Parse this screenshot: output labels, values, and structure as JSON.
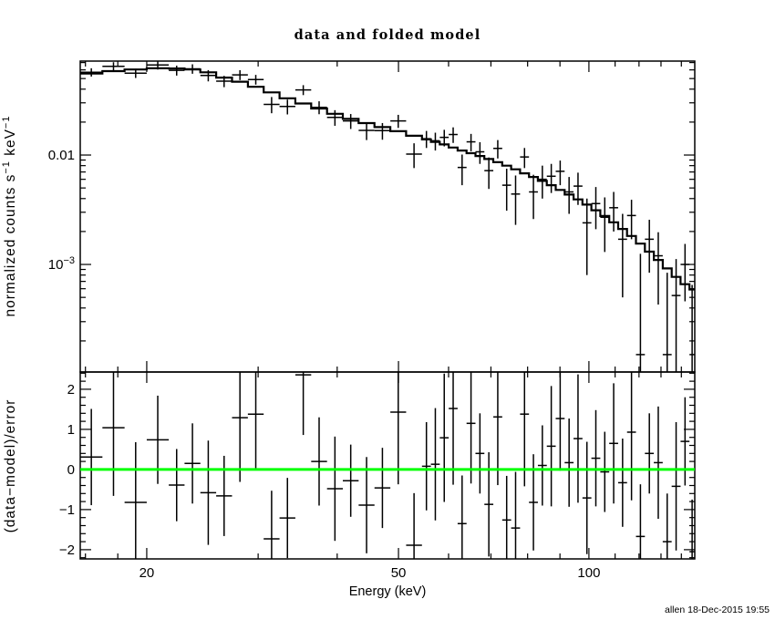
{
  "window": {
    "timestamp": "allen 18-Dec-2015 19:55"
  },
  "colors": {
    "foreground": "#000000",
    "background": "#ffffff",
    "zero_line_green": "#00ff00"
  },
  "chart_data": {
    "type": "line",
    "title": "data and folded model",
    "xlabel": "Energy (keV)",
    "x_scale": "log",
    "xlim": [
      15.7,
      147
    ],
    "x_major_ticks": [
      {
        "value": 20,
        "label": "20"
      },
      {
        "value": 50,
        "label": "50"
      },
      {
        "value": 100,
        "label": "100"
      }
    ],
    "x_minor_ticks": [
      16,
      18,
      30,
      40,
      60,
      70,
      80,
      90,
      110,
      120,
      130,
      140
    ],
    "bin_edges_keV": [
      15.7,
      17.02,
      18.45,
      20.0,
      21.67,
      22.95,
      24.31,
      25.75,
      27.28,
      28.9,
      30.61,
      32.43,
      34.35,
      36.39,
      38.55,
      40.83,
      43.25,
      45.82,
      48.54,
      51.41,
      54.46,
      56.26,
      58.11,
      60.03,
      62.01,
      64.06,
      66.17,
      68.35,
      70.61,
      72.94,
      75.34,
      77.83,
      80.4,
      83.05,
      85.79,
      88.62,
      91.54,
      94.56,
      97.68,
      100.9,
      104.23,
      107.67,
      111.22,
      114.89,
      118.68,
      122.6,
      126.64,
      130.82,
      135.14,
      139.6,
      144.2,
      147.0
    ],
    "spectrum_panel": {
      "ylabel_parts": [
        {
          "text": "normalized counts s"
        },
        {
          "text": "−1",
          "superscript": true
        },
        {
          "text": " keV"
        },
        {
          "text": "−1",
          "superscript": true
        }
      ],
      "y_scale": "log",
      "ylim": [
        0.000104,
        0.0722
      ],
      "y_major_ticks": [
        {
          "value": 0.01,
          "label": "0.01"
        },
        {
          "value": 0.001,
          "label_base": "10",
          "label_sup": "−3"
        }
      ],
      "model_counts": [
        0.0555,
        0.0585,
        0.0605,
        0.062,
        0.0618,
        0.0605,
        0.057,
        0.051,
        0.0468,
        0.042,
        0.0374,
        0.033,
        0.0296,
        0.0266,
        0.0238,
        0.0214,
        0.0196,
        0.018,
        0.0165,
        0.015,
        0.0139,
        0.0132,
        0.0125,
        0.0117,
        0.011,
        0.0104,
        0.0098,
        0.0092,
        0.0086,
        0.008,
        0.0074,
        0.0068,
        0.0063,
        0.0058,
        0.0053,
        0.0048,
        0.00435,
        0.00393,
        0.00352,
        0.00313,
        0.00277,
        0.00243,
        0.00211,
        0.00182,
        0.00155,
        0.00131,
        0.0011,
        0.00092,
        0.00077,
        0.00066,
        0.00059
      ],
      "data_counts": [
        0.0571,
        0.0646,
        0.056,
        0.0666,
        0.0594,
        0.0614,
        0.0534,
        0.0473,
        0.054,
        0.049,
        0.029,
        0.0278,
        0.0394,
        0.0273,
        0.0221,
        0.0205,
        0.0168,
        0.0167,
        0.0205,
        0.0102,
        0.0141,
        0.0135,
        0.0145,
        0.0154,
        0.0077,
        0.0132,
        0.0107,
        0.0072,
        0.0115,
        0.0053,
        0.0044,
        0.0096,
        0.0046,
        0.006,
        0.0064,
        0.0071,
        0.0046,
        0.0052,
        0.0024,
        0.0036,
        0.0027,
        0.0033,
        0.0017,
        0.0028,
        0.00015,
        0.0017,
        0.0012,
        0.00015,
        0.00052,
        0.001,
        0.00015
      ],
      "data_errors": [
        0.005,
        0.0059,
        0.0054,
        0.0062,
        0.0062,
        0.0061,
        0.0063,
        0.0056,
        0.0056,
        0.005,
        0.0049,
        0.0043,
        0.0041,
        0.0037,
        0.0036,
        0.0032,
        0.0031,
        0.0029,
        0.0028,
        0.0026,
        0.0025,
        0.0025,
        0.0025,
        0.0025,
        0.0024,
        0.0024,
        0.0024,
        0.0023,
        0.0022,
        0.0022,
        0.0021,
        0.002,
        0.002,
        0.002,
        0.0019,
        0.0018,
        0.0017,
        0.0017,
        0.0016,
        0.0015,
        0.0014,
        0.0013,
        0.0012,
        0.0011,
        0.0011,
        0.00086,
        0.00077,
        0.00069,
        0.0006,
        0.00054,
        0.0005
      ]
    },
    "residual_panel": {
      "ylabel": "(data−model)/error",
      "y_scale": "linear",
      "ylim": [
        -2.23,
        2.43
      ],
      "y_major_ticks": [
        {
          "value": 2,
          "label": "2"
        },
        {
          "value": 1,
          "label": "1"
        },
        {
          "value": 0,
          "label": "0"
        },
        {
          "value": -1,
          "label": "−1"
        },
        {
          "value": -2,
          "label": "−2"
        }
      ],
      "y_minor_step": 0.2,
      "residuals_sigma": [
        0.31,
        1.04,
        -0.82,
        0.74,
        -0.39,
        0.15,
        -0.58,
        -0.66,
        1.29,
        1.38,
        -1.73,
        -1.21,
        2.36,
        0.2,
        -0.48,
        -0.28,
        -0.89,
        -0.46,
        1.43,
        -1.89,
        0.08,
        0.13,
        0.79,
        1.52,
        -1.35,
        1.15,
        0.4,
        -0.87,
        1.31,
        -1.26,
        -1.46,
        1.38,
        -0.82,
        0.1,
        0.58,
        1.27,
        0.17,
        0.77,
        -0.71,
        0.28,
        -0.06,
        0.65,
        -0.33,
        0.93,
        -1.67,
        0.4,
        0.17,
        -1.8,
        -0.42,
        0.7,
        -2.05
      ],
      "error_bar_halflength_sigma": [
        1.2,
        1.7,
        1.5,
        1.1,
        0.9,
        1.0,
        1.3,
        1.0,
        1.6,
        1.4,
        1.2,
        1.0,
        1.5,
        1.1,
        1.3,
        0.9,
        1.2,
        1.0,
        1.8,
        1.3,
        1.1,
        1.4,
        1.6,
        1.9,
        1.2,
        1.5,
        1.0,
        1.3,
        1.7,
        1.1,
        1.4,
        1.8,
        1.2,
        1.0,
        1.5,
        1.3,
        1.1,
        1.6,
        1.4,
        1.2,
        1.0,
        1.5,
        1.1,
        1.7,
        1.3,
        1.0,
        1.4,
        1.2,
        1.6,
        1.1,
        1.3
      ],
      "zero_line_color": "#00ff00"
    }
  }
}
